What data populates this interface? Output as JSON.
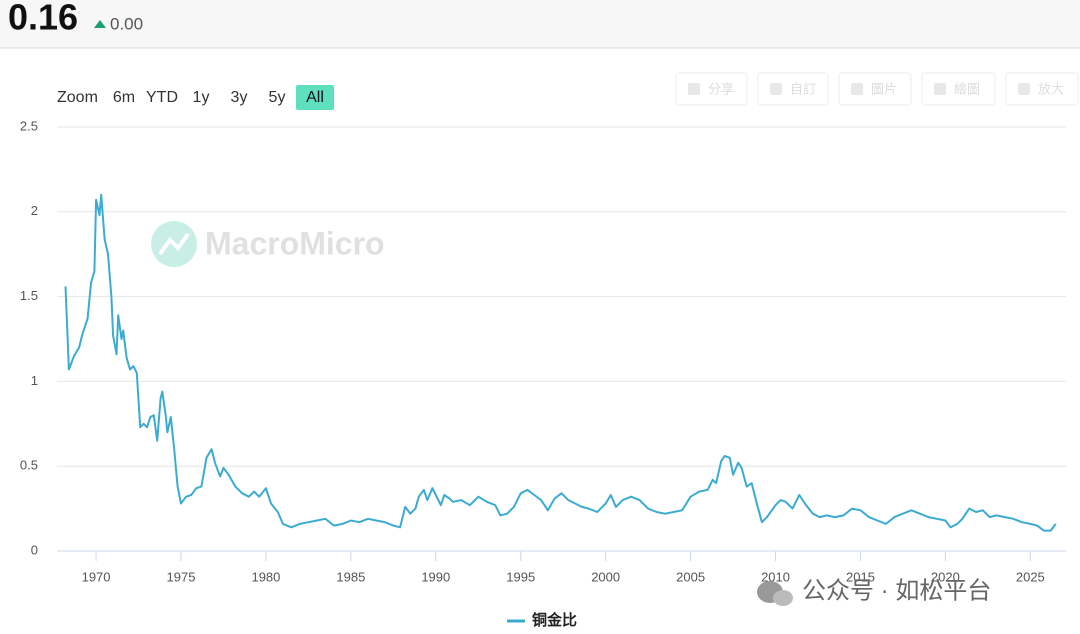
{
  "header": {
    "value": "0.16",
    "change": "0.00"
  },
  "range_selector": {
    "label": "Zoom",
    "buttons": [
      "6m",
      "YTD",
      "1y",
      "3y",
      "5y",
      "All"
    ],
    "selected": "All"
  },
  "toolbar": [
    "分享",
    "自訂",
    "圖片",
    "繪圖",
    "放大"
  ],
  "watermarks": [
    "MacroMicro",
    "公众号 · 如松平台"
  ],
  "chart_data": {
    "type": "line",
    "x": [
      1968.2,
      1968.4,
      1968.7,
      1969.0,
      1969.2,
      1969.5,
      1969.7,
      1969.9,
      1970.0,
      1970.2,
      1970.3,
      1970.5,
      1970.7,
      1970.9,
      1971.0,
      1971.2,
      1971.3,
      1971.5,
      1971.6,
      1971.8,
      1972.0,
      1972.2,
      1972.4,
      1972.6,
      1972.8,
      1973.0,
      1973.2,
      1973.4,
      1973.6,
      1973.8,
      1973.9,
      1974.1,
      1974.2,
      1974.4,
      1974.6,
      1974.8,
      1975.0,
      1975.3,
      1975.6,
      1975.9,
      1976.2,
      1976.5,
      1976.8,
      1977.0,
      1977.3,
      1977.5,
      1977.8,
      1978.2,
      1978.6,
      1979.0,
      1979.3,
      1979.6,
      1980.0,
      1980.3,
      1980.7,
      1981.0,
      1981.5,
      1982.0,
      1982.5,
      1983.0,
      1983.5,
      1984.0,
      1984.5,
      1985.0,
      1985.5,
      1986.0,
      1986.5,
      1987.0,
      1987.5,
      1987.9,
      1988.2,
      1988.5,
      1988.8,
      1989.0,
      1989.3,
      1989.5,
      1989.8,
      1990.0,
      1990.3,
      1990.5,
      1990.8,
      1991.0,
      1991.5,
      1992.0,
      1992.5,
      1993.0,
      1993.5,
      1993.8,
      1994.2,
      1994.6,
      1995.0,
      1995.4,
      1995.8,
      1996.2,
      1996.6,
      1997.0,
      1997.4,
      1997.8,
      1998.2,
      1998.6,
      1999.0,
      1999.5,
      2000.0,
      2000.3,
      2000.6,
      2001.0,
      2001.5,
      2002.0,
      2002.5,
      2003.0,
      2003.5,
      2004.0,
      2004.5,
      2005.0,
      2005.5,
      2006.0,
      2006.3,
      2006.5,
      2006.8,
      2007.0,
      2007.3,
      2007.5,
      2007.8,
      2008.0,
      2008.3,
      2008.6,
      2008.9,
      2009.2,
      2009.5,
      2010.0,
      2010.3,
      2010.6,
      2011.0,
      2011.4,
      2011.8,
      2012.2,
      2012.6,
      2013.0,
      2013.5,
      2014.0,
      2014.5,
      2015.0,
      2015.5,
      2016.0,
      2016.5,
      2017.0,
      2017.5,
      2018.0,
      2018.5,
      2019.0,
      2019.5,
      2020.0,
      2020.3,
      2020.7,
      2021.0,
      2021.4,
      2021.8,
      2022.2,
      2022.6,
      2023.0,
      2023.5,
      2024.0,
      2024.5,
      2025.0,
      2025.4,
      2025.8,
      2026.2,
      2026.5
    ],
    "series": [
      {
        "name": "铜金比",
        "color": "#3cabd2",
        "values": [
          1.56,
          1.07,
          1.15,
          1.2,
          1.28,
          1.37,
          1.58,
          1.65,
          2.07,
          1.98,
          2.1,
          1.84,
          1.75,
          1.5,
          1.27,
          1.16,
          1.39,
          1.25,
          1.3,
          1.14,
          1.07,
          1.09,
          1.05,
          0.73,
          0.75,
          0.73,
          0.79,
          0.8,
          0.65,
          0.9,
          0.94,
          0.8,
          0.7,
          0.79,
          0.6,
          0.38,
          0.28,
          0.32,
          0.33,
          0.37,
          0.38,
          0.55,
          0.6,
          0.52,
          0.44,
          0.49,
          0.45,
          0.38,
          0.34,
          0.32,
          0.35,
          0.32,
          0.37,
          0.28,
          0.23,
          0.16,
          0.14,
          0.16,
          0.17,
          0.18,
          0.19,
          0.15,
          0.16,
          0.18,
          0.17,
          0.19,
          0.18,
          0.17,
          0.15,
          0.14,
          0.26,
          0.22,
          0.25,
          0.32,
          0.36,
          0.3,
          0.37,
          0.33,
          0.27,
          0.33,
          0.31,
          0.29,
          0.3,
          0.27,
          0.32,
          0.29,
          0.27,
          0.21,
          0.22,
          0.26,
          0.34,
          0.36,
          0.33,
          0.3,
          0.24,
          0.31,
          0.34,
          0.3,
          0.28,
          0.26,
          0.25,
          0.23,
          0.28,
          0.33,
          0.26,
          0.3,
          0.32,
          0.3,
          0.25,
          0.23,
          0.22,
          0.23,
          0.24,
          0.32,
          0.35,
          0.36,
          0.42,
          0.4,
          0.53,
          0.56,
          0.55,
          0.45,
          0.52,
          0.49,
          0.38,
          0.4,
          0.28,
          0.17,
          0.2,
          0.27,
          0.3,
          0.29,
          0.25,
          0.33,
          0.27,
          0.22,
          0.2,
          0.21,
          0.2,
          0.21,
          0.25,
          0.24,
          0.2,
          0.18,
          0.16,
          0.2,
          0.22,
          0.24,
          0.22,
          0.2,
          0.19,
          0.18,
          0.14,
          0.16,
          0.19,
          0.25,
          0.23,
          0.24,
          0.2,
          0.21,
          0.2,
          0.19,
          0.17,
          0.16,
          0.15,
          0.12,
          0.12,
          0.16
        ]
      }
    ],
    "xlim": [
      1967.7,
      2027.1
    ],
    "ylim": [
      0,
      2.5
    ],
    "xticks": [
      1970,
      1975,
      1980,
      1985,
      1990,
      1995,
      2000,
      2005,
      2010,
      2015,
      2020,
      2025
    ],
    "yticks": [
      0,
      0.5,
      1,
      1.5,
      2,
      2.5
    ],
    "grid": true
  }
}
